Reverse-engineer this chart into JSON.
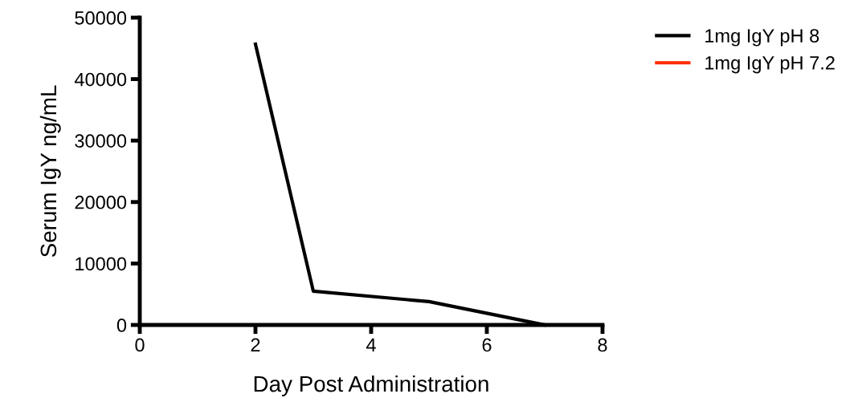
{
  "chart_data": {
    "type": "line",
    "xlabel": "Day Post Administration",
    "ylabel": "Serum IgY ng/mL",
    "x": [
      2,
      3,
      5,
      7
    ],
    "series": [
      {
        "name": "1mg IgY pH 8",
        "color": "#000000",
        "values": [
          45700,
          5500,
          3800,
          0
        ]
      },
      {
        "name": "1mg IgY pH 7.2",
        "color": "#ff2a00",
        "values": [
          null,
          null,
          null,
          null
        ]
      }
    ],
    "xlim": [
      0,
      8
    ],
    "xticks": [
      0,
      2,
      4,
      6,
      8
    ],
    "ylim": [
      0,
      50000
    ],
    "yticks": [
      0,
      10000,
      20000,
      30000,
      40000,
      50000
    ],
    "grid": false,
    "legend": "top right",
    "marker": "none",
    "line_style": "solid"
  }
}
